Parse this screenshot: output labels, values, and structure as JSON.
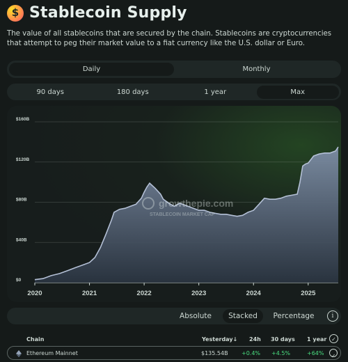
{
  "header": {
    "title": "Stablecoin Supply",
    "logo_glyph": "$",
    "description": "The value of all stablecoins that are secured by the chain. Stablecoins are cryptocurrencies that attempt to peg their market value to a fiat currency like the U.S. dollar or Euro."
  },
  "interval_toggle": {
    "items": [
      "Daily",
      "Monthly"
    ],
    "active": "Daily"
  },
  "range_toggle": {
    "items": [
      "90 days",
      "180 days",
      "1 year",
      "Max"
    ],
    "active": "Max"
  },
  "watermark": {
    "brand": "growthepie.com",
    "subtitle": "STABLECOIN MARKET CAP"
  },
  "chart_data": {
    "type": "area",
    "x": [
      2020.0,
      2020.15,
      2020.3,
      2020.45,
      2020.6,
      2020.75,
      2020.9,
      2021.0,
      2021.1,
      2021.2,
      2021.3,
      2021.4,
      2021.45,
      2021.55,
      2021.65,
      2021.75,
      2021.85,
      2021.95,
      2022.0,
      2022.05,
      2022.1,
      2022.2,
      2022.3,
      2022.35,
      2022.45,
      2022.55,
      2022.65,
      2022.75,
      2022.85,
      2022.95,
      2023.0,
      2023.1,
      2023.2,
      2023.3,
      2023.4,
      2023.5,
      2023.6,
      2023.7,
      2023.8,
      2023.9,
      2024.0,
      2024.1,
      2024.2,
      2024.3,
      2024.4,
      2024.5,
      2024.6,
      2024.7,
      2024.8,
      2024.85,
      2024.9,
      2024.95,
      2025.0,
      2025.1,
      2025.2,
      2025.3,
      2025.4,
      2025.5,
      2025.55
    ],
    "y": [
      3,
      4,
      7,
      9,
      12,
      15,
      18,
      20,
      25,
      35,
      48,
      62,
      70,
      73,
      74,
      76,
      78,
      84,
      90,
      95,
      99,
      94,
      88,
      83,
      79,
      76,
      79,
      77,
      75,
      73,
      72,
      72,
      70,
      69,
      68,
      68,
      67,
      66,
      67,
      70,
      72,
      78,
      84,
      83,
      83,
      84,
      86,
      87,
      88,
      100,
      116,
      118,
      119,
      126,
      128,
      129,
      129,
      131,
      135
    ],
    "xlim": [
      2020,
      2025.55
    ],
    "ylim": [
      0,
      160
    ],
    "y_ticks": [
      "$0",
      "$40B",
      "$80B",
      "$120B",
      "$160B"
    ],
    "y_tick_values": [
      0,
      40,
      80,
      120,
      160
    ],
    "x_ticks": [
      "2020",
      "2021",
      "2022",
      "2023",
      "2024",
      "2025"
    ],
    "x_tick_values": [
      2020,
      2021,
      2022,
      2023,
      2024,
      2025
    ],
    "grid": true,
    "colors": {
      "line": "#b4c0d6",
      "fill_top": "#7e8ea6",
      "fill_bottom": "#2a3440"
    }
  },
  "view_controls": {
    "items": [
      "Absolute",
      "Stacked",
      "Percentage"
    ],
    "active": "Stacked",
    "info_glyph": "i"
  },
  "table": {
    "headers": {
      "chain": "Chain",
      "yesterday": "Yesterday",
      "d24h": "24h",
      "d30": "30 days",
      "y1": "1 year",
      "sort_glyph": "↓",
      "check_glyph": "✓"
    },
    "rows": [
      {
        "chain": "Ethereum Mainnet",
        "yesterday": "$135.54B",
        "d24h": "+0.4%",
        "d30": "+4.5%",
        "y1": "+64%",
        "check_glyph": "✓"
      }
    ]
  }
}
